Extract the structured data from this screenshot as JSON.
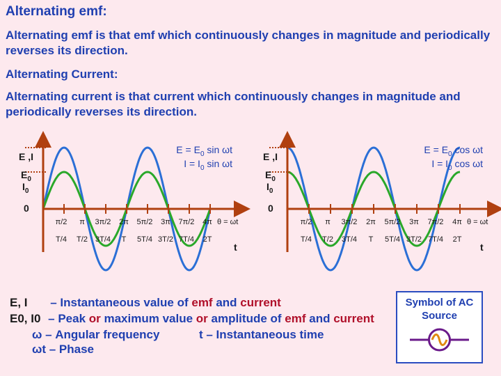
{
  "title": "Alternating emf:",
  "emf_def": "Alternating emf is that emf  which continuously changes in magnitude and periodically reverses its direction.",
  "current_heading": "Alternating Current:",
  "current_def": "Alternating current is that current  which continuously changes in magnitude and periodically reverses its direction.",
  "graph_left": {
    "y_label": "E ,I",
    "peak_e": "E0",
    "peak_i": "I0",
    "origin": "0",
    "eq_e": "E  = E0 sin ωt",
    "eq_i": "I  = I0 sin ωt",
    "theta_ticks": [
      "π/2",
      "π",
      "3π/2",
      "2π",
      "5π/2",
      "3π",
      "7π/2",
      "4π"
    ],
    "theta_label": "θ = ωt",
    "t_ticks": [
      "T/4",
      "T/2",
      "3T/4",
      "T",
      "5T/4",
      "3T/2",
      "7T/4",
      "2T"
    ],
    "t_label": "t"
  },
  "graph_right": {
    "y_label": "E ,I",
    "peak_e": "E0",
    "peak_i": "I0",
    "origin": "0",
    "eq_e": "E  = E0 cos ωt",
    "eq_i": "I  = I0 cos ωt",
    "theta_ticks": [
      "π/2",
      "π",
      "3π/2",
      "2π",
      "5π/2",
      "3π",
      "7π/2",
      "4π"
    ],
    "theta_label": "θ = ωt",
    "t_ticks": [
      "T/4",
      "T/2",
      "3T/4",
      "T",
      "5T/4",
      "3T/2",
      "7T/4",
      "2T"
    ],
    "t_label": "t"
  },
  "legend": {
    "l1_sym": "E, I",
    "l1_text": "– Instantaneous value of ",
    "l1_emf": "emf",
    "l1_and": " and ",
    "l1_cur": "current",
    "l2_sym": "E0, I0",
    "l2_text": "– Peak ",
    "l2_or1": "or",
    "l2_max": " maximum value ",
    "l2_or2": "or",
    "l2_amp": " amplitude of ",
    "l2_emf": "emf",
    "l2_and": " and ",
    "l2_cur": "current",
    "l3": "ω – Angular frequency",
    "l3b": "t – Instantaneous time",
    "l4": "ωt – Phase"
  },
  "symbol_box": {
    "label": "Symbol of AC Source",
    "icon": "ac-source-icon"
  },
  "colors": {
    "text": "#1f3fb0",
    "axis": "#b04010",
    "emf_wave": "#2b6fd6",
    "current_wave": "#2aa82a",
    "background": "#fde9ee"
  }
}
